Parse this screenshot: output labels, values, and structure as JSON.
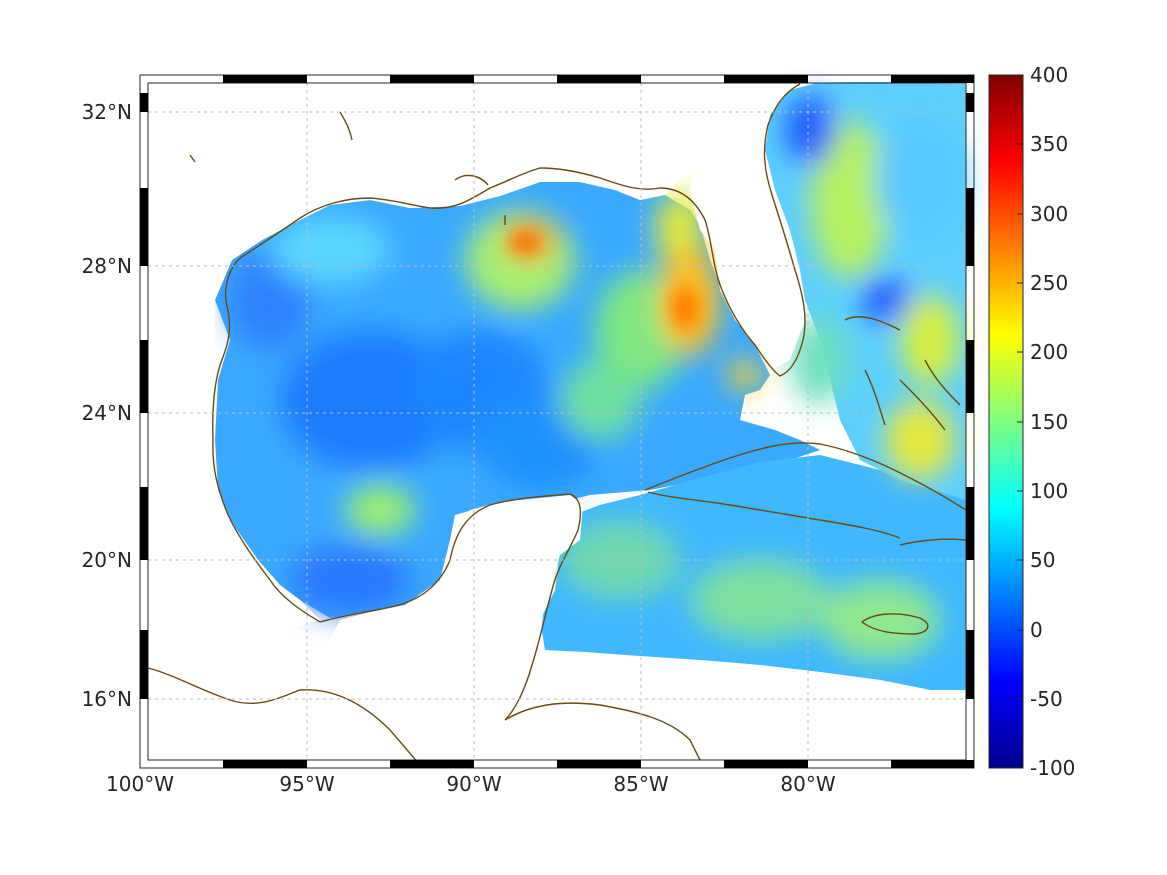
{
  "map": {
    "lon_ticks": [
      "100°W",
      "95°W",
      "90°W",
      "85°W",
      "80°W"
    ],
    "lat_ticks": [
      "32°N",
      "28°N",
      "24°N",
      "20°N",
      "16°N"
    ],
    "lon_range": [
      -100,
      -75
    ],
    "lat_range": [
      14.5,
      33
    ],
    "grid": true,
    "colors": {
      "coast": "#6b4a12",
      "grid": "#bdbdbd",
      "frame": "#262626"
    }
  },
  "colorbar": {
    "ticks": [
      "400",
      "350",
      "300",
      "250",
      "200",
      "150",
      "100",
      "50",
      "0",
      "-50",
      "-100"
    ],
    "range": [
      -100,
      400
    ],
    "colormap": "jet"
  }
}
